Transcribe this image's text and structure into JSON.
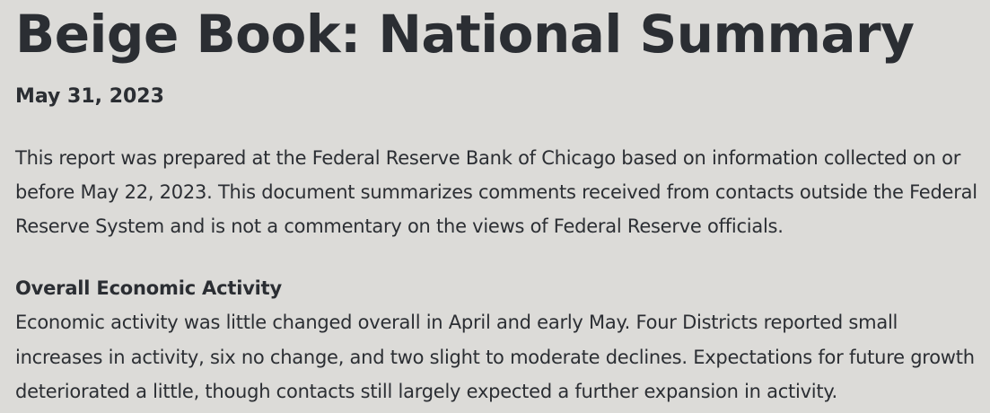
{
  "document": {
    "title": "Beige Book: National Summary",
    "date": "May 31, 2023",
    "intro": "This report was prepared at the Federal Reserve Bank of Chicago based on information collected on or before May 22, 2023. This document summarizes comments received from contacts outside the Federal Reserve System and is not a commentary on the views of Federal Reserve officials.",
    "sections": [
      {
        "heading": "Overall Economic Activity",
        "body": "Economic activity was little changed overall in April and early May. Four Districts reported small increases in activity, six no change, and two slight to moderate declines. Expectations for future growth deteriorated a little, though contacts still largely expected a further expansion in activity."
      }
    ]
  },
  "colors": {
    "background": "#dcdbd8",
    "text": "#2b2e33"
  }
}
